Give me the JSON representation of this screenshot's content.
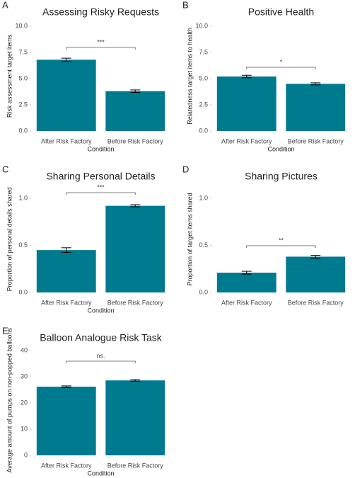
{
  "chart_data": [
    {
      "type": "bar",
      "panel": "A",
      "title": "Assessing Risky Requests",
      "ylabel": "Risk assessment target items",
      "xlabel": "Condition",
      "categories": [
        "After Risk Factory",
        "Before Risk Factory"
      ],
      "values": [
        6.8,
        3.8
      ],
      "errors": [
        0.15,
        0.12
      ],
      "color": "#007a8f",
      "ylim": [
        0,
        10.5
      ],
      "yticks": [
        {
          "value": 0,
          "label": "0.0"
        },
        2.5,
        {
          "value": 5,
          "label": "5.0"
        },
        7.5,
        {
          "value": 10,
          "label": "10.0"
        }
      ],
      "significance": "***"
    },
    {
      "type": "bar",
      "panel": "B",
      "title": "Positive Health",
      "ylabel": "Relatedness target items to health",
      "xlabel": "Condition",
      "categories": [
        "After Risk Factory",
        "Before Risk Factory"
      ],
      "values": [
        5.2,
        4.5
      ],
      "errors": [
        0.12,
        0.1
      ],
      "color": "#007a8f",
      "ylim": [
        0,
        10.5
      ],
      "yticks": [
        {
          "value": 0,
          "label": "0.0"
        },
        2.5,
        {
          "value": 5,
          "label": "5.0"
        },
        7.5,
        {
          "value": 10,
          "label": "10.0"
        }
      ],
      "significance": "*"
    },
    {
      "type": "bar",
      "panel": "C",
      "title": "Sharing Personal Details",
      "ylabel": "Proportion of personal details shared",
      "xlabel": "Condition",
      "categories": [
        "After Risk Factory",
        "Before Risk Factory"
      ],
      "values": [
        0.45,
        0.92
      ],
      "errors": [
        0.025,
        0.012
      ],
      "color": "#007a8f",
      "ylim": [
        0,
        1.13
      ],
      "yticks": [
        {
          "value": 0,
          "label": "0.0"
        },
        0.5,
        {
          "value": 1,
          "label": "1.0"
        }
      ],
      "significance": "***"
    },
    {
      "type": "bar",
      "panel": "D",
      "title": "Sharing Pictures",
      "ylabel": "Proportion of target items shared",
      "categories": [
        "After Risk Factory",
        "Before Risk Factory"
      ],
      "values": [
        0.21,
        0.38
      ],
      "errors": [
        0.015,
        0.015
      ],
      "color": "#007a8f",
      "ylim": [
        0,
        1.13
      ],
      "yticks": [
        {
          "value": 0,
          "label": "0.0"
        },
        0.5,
        {
          "value": 1,
          "label": "1.0"
        }
      ],
      "significance": "**"
    },
    {
      "type": "bar",
      "panel": "E",
      "title": "Balloon Analogue Risk Task",
      "ylabel": "Average amount of pumps on non-popped balloons",
      "xlabel": "Condition",
      "categories": [
        "After Risk Factory",
        "Before Risk Factory"
      ],
      "values": [
        26.2,
        28.6
      ],
      "errors": [
        0.3,
        0.3
      ],
      "color": "#007a8f",
      "ylim": [
        0,
        42
      ],
      "yticks": [
        0,
        10,
        20,
        30,
        40
      ],
      "significance": "ns."
    }
  ]
}
